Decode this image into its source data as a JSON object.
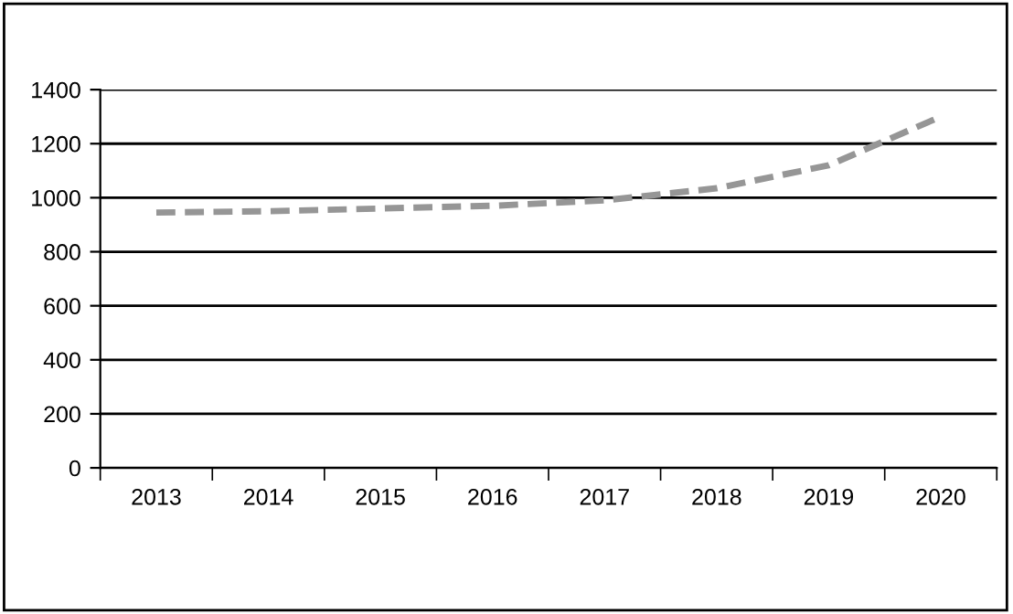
{
  "chart_data": {
    "type": "line",
    "categories": [
      "2013",
      "2014",
      "2015",
      "2016",
      "2017",
      "2018",
      "2019",
      "2020"
    ],
    "series": [
      {
        "color": "#969696",
        "values": [
          945,
          950,
          960,
          970,
          990,
          1035,
          1120,
          1300
        ]
      }
    ],
    "ylim": [
      0,
      1400
    ],
    "yticks": [
      0,
      200,
      400,
      600,
      800,
      1000,
      1200,
      1400
    ],
    "grid": "y",
    "line_style": "dashed",
    "marker": "none",
    "legend": false
  }
}
